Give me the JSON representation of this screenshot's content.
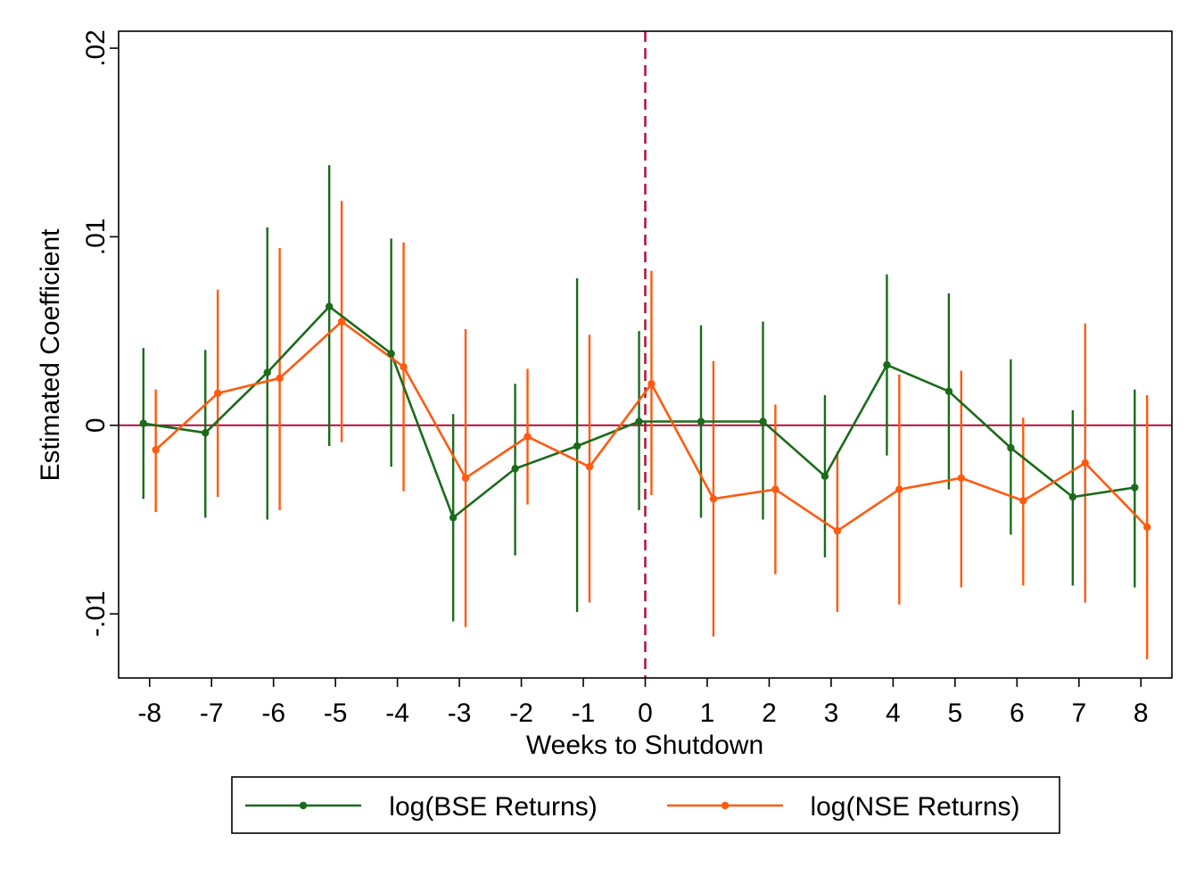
{
  "chart_data": {
    "type": "line",
    "xlabel": "Weeks to Shutdown",
    "ylabel": "Estimated Coefficient",
    "x_ticks": [
      "-8",
      "-7",
      "-6",
      "-5",
      "-4",
      "-3",
      "-2",
      "-1",
      "0",
      "1",
      "2",
      "3",
      "4",
      "5",
      "6",
      "7",
      "8"
    ],
    "y_ticks": [
      {
        "value": -0.01,
        "label": "-.01"
      },
      {
        "value": 0,
        "label": "0"
      },
      {
        "value": 0.01,
        "label": ".01"
      },
      {
        "value": 0.02,
        "label": ".02"
      }
    ],
    "xlim": [
      -8.5,
      8.5
    ],
    "ylim": [
      -0.0134,
      0.0209
    ],
    "reference_lines": {
      "horizontal_y": 0,
      "vertical_x": 0
    },
    "legend_position": "bottom",
    "series": [
      {
        "name": "log(BSE Returns)",
        "color": "#1a6b1a",
        "offset": -0.1,
        "x": [
          -8,
          -7,
          -6,
          -5,
          -4,
          -3,
          -2,
          -1,
          0,
          1,
          2,
          3,
          4,
          5,
          6,
          7,
          8
        ],
        "y": [
          0.0001,
          -0.0004,
          0.0028,
          0.0063,
          0.0038,
          -0.0049,
          -0.0023,
          -0.0011,
          0.0002,
          0.0002,
          0.0002,
          -0.0027,
          0.0032,
          0.0018,
          -0.0012,
          -0.0038,
          -0.0033
        ],
        "lower": [
          -0.0039,
          -0.0049,
          -0.005,
          -0.0011,
          -0.0022,
          -0.0104,
          -0.0069,
          -0.0099,
          -0.0045,
          -0.0049,
          -0.005,
          -0.007,
          -0.0016,
          -0.0034,
          -0.0058,
          -0.0085,
          -0.0086
        ],
        "upper": [
          0.0041,
          0.004,
          0.0105,
          0.0138,
          0.0099,
          0.0006,
          0.0022,
          0.0078,
          0.005,
          0.0053,
          0.0055,
          0.0016,
          0.008,
          0.007,
          0.0035,
          0.0008,
          0.0019
        ]
      },
      {
        "name": "log(NSE Returns)",
        "color": "#ff5a0f",
        "offset": 0.1,
        "x": [
          -8,
          -7,
          -6,
          -5,
          -4,
          -3,
          -2,
          -1,
          0,
          1,
          2,
          3,
          4,
          5,
          6,
          7,
          8
        ],
        "y": [
          -0.0013,
          0.0017,
          0.0025,
          0.0055,
          0.0031,
          -0.0028,
          -0.0006,
          -0.0022,
          0.0022,
          -0.0039,
          -0.0034,
          -0.0056,
          -0.0034,
          -0.0028,
          -0.004,
          -0.002,
          -0.0054
        ],
        "lower": [
          -0.0046,
          -0.0038,
          -0.0045,
          -0.0009,
          -0.0035,
          -0.0107,
          -0.0042,
          -0.0094,
          -0.0037,
          -0.0112,
          -0.0079,
          -0.0099,
          -0.0095,
          -0.0086,
          -0.0085,
          -0.0094,
          -0.0124
        ],
        "upper": [
          0.0019,
          0.0072,
          0.0094,
          0.0119,
          0.0097,
          0.0051,
          0.003,
          0.0048,
          0.0082,
          0.0034,
          0.0011,
          -0.0014,
          0.0027,
          0.0029,
          0.0004,
          0.0054,
          0.0016
        ]
      }
    ]
  }
}
